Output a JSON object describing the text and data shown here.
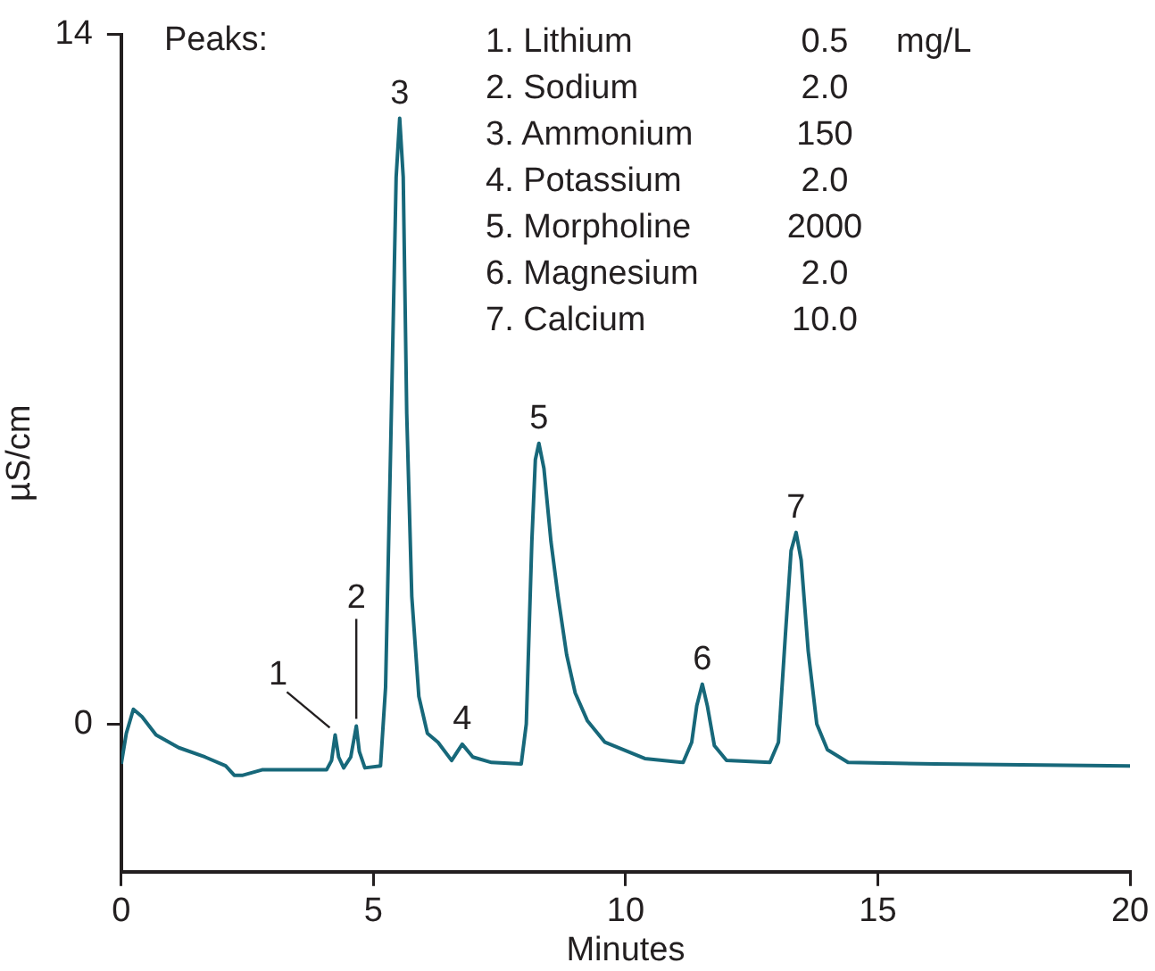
{
  "chart_data": {
    "type": "line",
    "xlabel": "Minutes",
    "ylabel": "µS/cm",
    "xlim": [
      0,
      20
    ],
    "xticks": [
      0,
      5,
      10,
      15,
      20
    ],
    "ylim": [
      -3,
      14
    ],
    "yticks": [
      0,
      14
    ],
    "grid": false,
    "legend": false,
    "marker": "none",
    "line_style": "solid",
    "series": [
      {
        "color": "#17687a",
        "x": [
          0,
          0.1,
          0.24,
          0.41,
          0.69,
          1.14,
          1.66,
          2.07,
          2.24,
          2.41,
          2.79,
          4.07,
          4.17,
          4.24,
          4.31,
          4.41,
          4.55,
          4.66,
          4.72,
          4.83,
          5.14,
          5.24,
          5.34,
          5.45,
          5.52,
          5.59,
          5.66,
          5.76,
          5.9,
          6.07,
          6.28,
          6.55,
          6.76,
          6.97,
          7.34,
          7.93,
          8.03,
          8.14,
          8.21,
          8.28,
          8.38,
          8.52,
          8.66,
          8.83,
          9.0,
          9.24,
          9.59,
          10.38,
          11.14,
          11.31,
          11.41,
          11.52,
          11.62,
          11.76,
          12.0,
          12.86,
          13.03,
          13.17,
          13.28,
          13.38,
          13.48,
          13.62,
          13.79,
          14.0,
          14.41,
          16.14,
          20
        ],
        "values": [
          -0.81,
          -0.19,
          0.3,
          0.15,
          -0.22,
          -0.48,
          -0.67,
          -0.85,
          -1.04,
          -1.04,
          -0.93,
          -0.93,
          -0.74,
          -0.22,
          -0.67,
          -0.89,
          -0.67,
          -0.04,
          -0.56,
          -0.89,
          -0.85,
          0.74,
          5.56,
          11.11,
          12.3,
          11.11,
          6.3,
          2.59,
          0.56,
          -0.19,
          -0.37,
          -0.74,
          -0.41,
          -0.67,
          -0.78,
          -0.81,
          0,
          3.7,
          5.37,
          5.7,
          5.19,
          3.7,
          2.59,
          1.41,
          0.63,
          0.07,
          -0.37,
          -0.7,
          -0.78,
          -0.37,
          0.37,
          0.81,
          0.37,
          -0.44,
          -0.74,
          -0.78,
          -0.37,
          1.85,
          3.52,
          3.89,
          3.33,
          1.48,
          0,
          -0.52,
          -0.78,
          -0.81,
          -0.85
        ]
      }
    ],
    "annotations": [
      {
        "text": "1",
        "x": 4.24,
        "y": -0.22
      },
      {
        "text": "2",
        "x": 4.66,
        "y": -0.04
      },
      {
        "text": "3",
        "x": 5.52,
        "y": 12.3
      },
      {
        "text": "4",
        "x": 6.76,
        "y": -0.41
      },
      {
        "text": "5",
        "x": 8.28,
        "y": 5.7
      },
      {
        "text": "6",
        "x": 11.52,
        "y": 0.81
      },
      {
        "text": "7",
        "x": 13.38,
        "y": 3.89
      },
      "Peaks:",
      "1. Lithium",
      "0.5",
      "mg/L",
      "2. Sodium",
      "2.0",
      "3. Ammonium",
      "150",
      "4. Potassium",
      "2.0",
      "5. Morpholine",
      "2000",
      "6. Magnesium",
      "2.0",
      "7. Calcium",
      "10.0"
    ]
  }
}
